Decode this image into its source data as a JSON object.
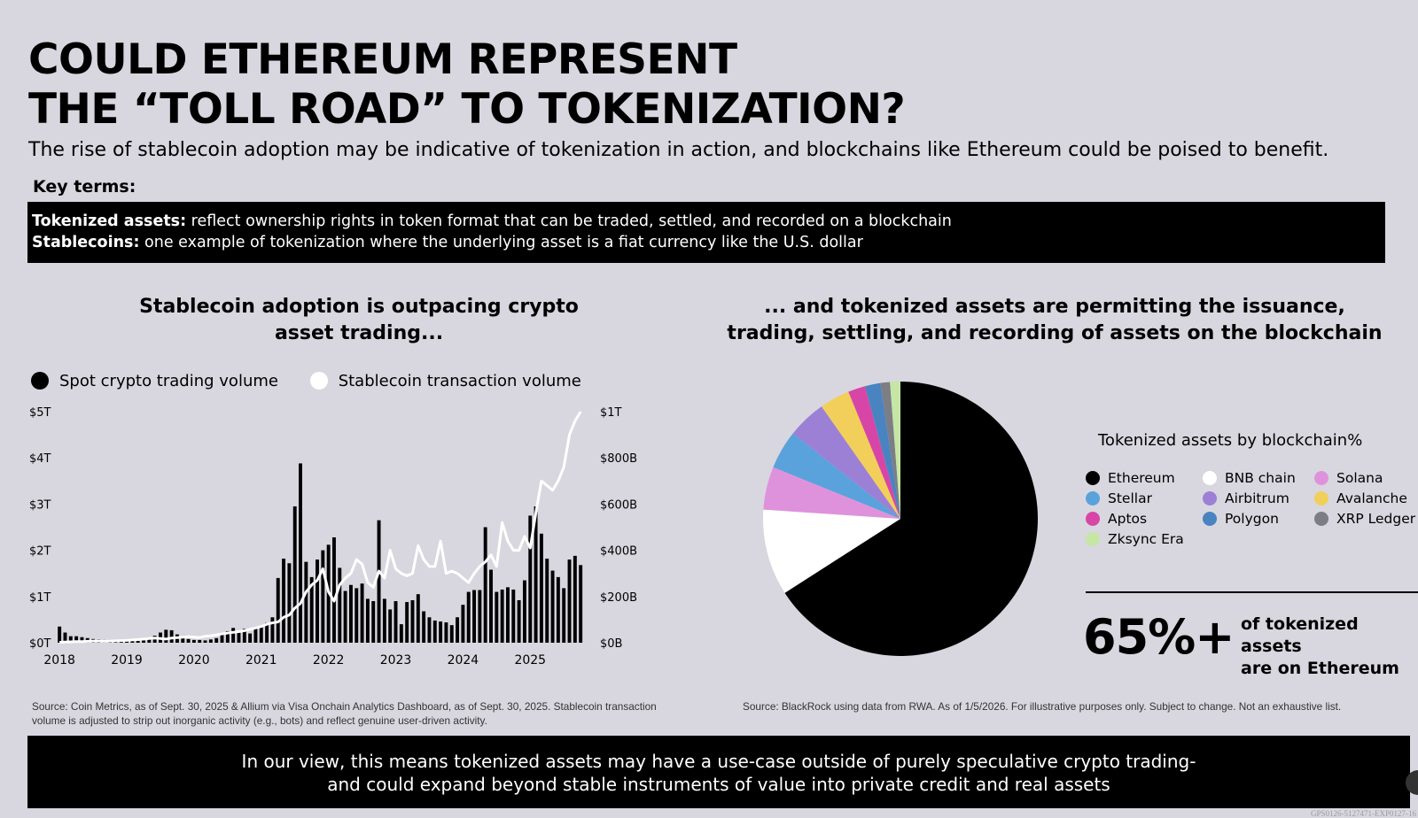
{
  "title_lines": [
    "COULD ETHEREUM REPRESENT",
    "THE “TOLL ROAD” TO TOKENIZATION?"
  ],
  "subtitle": "The rise of stablecoin adoption may be indicative of tokenization in action, and blockchains like Ethereum could be poised to benefit.",
  "key_terms": {
    "label": "Key terms:",
    "items": [
      {
        "term": "Tokenized assets:",
        "definition": " reflect ownership rights in token format that can be traded, settled, and recorded on a blockchain"
      },
      {
        "term": "Stablecoins:",
        "definition": " one example of tokenization where the underlying asset is a fiat currency like the U.S. dollar"
      }
    ]
  },
  "left_chart_title": [
    "Stablecoin adoption is outpacing crypto",
    "asset trading..."
  ],
  "right_chart_title": [
    "... and  tokenized assets are permitting the issuance,",
    "trading, settling, and recording of assets on the blockchain"
  ],
  "right_stat": {
    "value": "65%+",
    "text_lines": [
      "of tokenized assets",
      "are on Ethereum"
    ]
  },
  "source_left": "Source: Coin Metrics, as of Sept. 30, 2025 & Allium via Visa Onchain Analytics Dashboard, as of Sept. 30, 2025. Stablecoin transaction volume is adjusted to strip out inorganic activity (e.g., bots) and reflect genuine user-driven activity.",
  "source_right": "Source: BlackRock using data from RWA. As of 1/5/2026. For illustrative purposes only. Subject to change. Not an exhaustive list.",
  "bottom_banner_lines": [
    "In our view, this means tokenized assets may have a use-case outside of purely speculative crypto trading-",
    "and could expand beyond stable instruments of value into private credit and real assets"
  ],
  "corner_code": "GPS0126-5127471-EXP0127-16",
  "chart_data": [
    {
      "type": "bar",
      "title": "Stablecoin adoption is outpacing crypto asset trading...",
      "x_tick_labels": [
        "2018",
        "2019",
        "2020",
        "2021",
        "2022",
        "2023",
        "2024",
        "2025"
      ],
      "x_start": "2018-01",
      "x_end": "2025-09",
      "y_left_ticks": [
        "$0T",
        "$1T",
        "$2T",
        "$3T",
        "$4T",
        "$5T"
      ],
      "y_left_range": [
        0,
        5
      ],
      "y_right_ticks": [
        "$0B",
        "$200B",
        "$400B",
        "$600B",
        "$800B",
        "$1T"
      ],
      "y_right_range": [
        0,
        1000
      ],
      "series": [
        {
          "name": "Spot crypto trading volume",
          "type": "bar",
          "axis": "left",
          "color": "#000000",
          "values": [
            0.35,
            0.22,
            0.14,
            0.14,
            0.12,
            0.1,
            0.08,
            0.07,
            0.06,
            0.06,
            0.05,
            0.05,
            0.05,
            0.04,
            0.04,
            0.05,
            0.09,
            0.15,
            0.22,
            0.28,
            0.27,
            0.18,
            0.1,
            0.08,
            0.06,
            0.06,
            0.05,
            0.07,
            0.1,
            0.18,
            0.25,
            0.32,
            0.22,
            0.3,
            0.2,
            0.3,
            0.36,
            0.43,
            0.55,
            1.4,
            1.82,
            1.72,
            2.95,
            3.88,
            1.75,
            1.42,
            1.8,
            2.0,
            2.12,
            2.28,
            1.62,
            1.12,
            1.25,
            1.18,
            1.28,
            0.95,
            0.9,
            2.65,
            0.95,
            0.72,
            0.9,
            0.4,
            0.88,
            0.92,
            1.05,
            0.68,
            0.55,
            0.48,
            0.46,
            0.44,
            0.38,
            0.55,
            0.82,
            1.1,
            1.14,
            1.14,
            2.5,
            1.58,
            1.1,
            1.15,
            1.2,
            1.15,
            0.92,
            1.35,
            2.75,
            2.95,
            2.36,
            1.82,
            1.56,
            1.42,
            1.18,
            1.8,
            1.88,
            1.68
          ]
        },
        {
          "name": "Stablecoin transaction volume",
          "type": "line",
          "axis": "right",
          "color": "#ffffff",
          "values": [
            2,
            3,
            4,
            5,
            5,
            6,
            7,
            7,
            6,
            7,
            8,
            9,
            10,
            12,
            14,
            16,
            18,
            20,
            18,
            16,
            20,
            22,
            24,
            26,
            24,
            22,
            28,
            30,
            34,
            38,
            42,
            45,
            48,
            52,
            58,
            64,
            70,
            80,
            86,
            90,
            110,
            120,
            150,
            170,
            220,
            250,
            270,
            320,
            220,
            180,
            250,
            280,
            300,
            360,
            340,
            260,
            240,
            310,
            280,
            400,
            320,
            300,
            290,
            300,
            420,
            360,
            330,
            330,
            440,
            300,
            310,
            300,
            280,
            260,
            300,
            330,
            350,
            380,
            330,
            520,
            440,
            400,
            400,
            460,
            410,
            560,
            700,
            680,
            660,
            700,
            760,
            900,
            960,
            1000
          ]
        }
      ]
    },
    {
      "type": "pie",
      "title": "Tokenized assets by blockchain%",
      "categories": [
        "Ethereum",
        "BNB chain",
        "Solana",
        "Stellar",
        "Airbitrum",
        "Avalanche",
        "Aptos",
        "Polygon",
        "XRP Ledger",
        "Zksync Era"
      ],
      "values": [
        65.0,
        10.0,
        5.0,
        4.5,
        4.5,
        3.5,
        2.0,
        1.8,
        1.1,
        1.2
      ],
      "colors": [
        "#000000",
        "#ffffff",
        "#df92dc",
        "#5aa2dc",
        "#9b80d6",
        "#f2cf5a",
        "#d746a6",
        "#4a84c0",
        "#7d7d85",
        "#c5e6a5"
      ]
    }
  ]
}
